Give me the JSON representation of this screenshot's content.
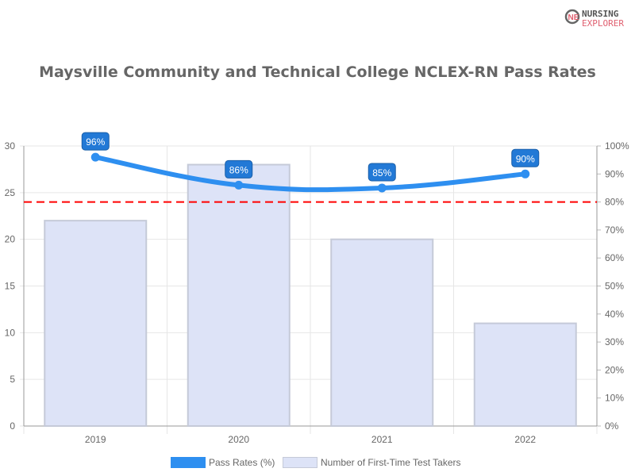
{
  "logo": {
    "line1": "NURSING",
    "line2": "EXPLORER"
  },
  "chart_data": {
    "type": "bar+line",
    "title": "Maysville Community and Technical College NCLEX-RN Pass Rates",
    "categories": [
      "2019",
      "2020",
      "2021",
      "2022"
    ],
    "series": [
      {
        "name": "Pass Rates (%)",
        "type": "line",
        "axis": "right",
        "values": [
          96,
          86,
          85,
          90
        ],
        "labels": [
          "96%",
          "86%",
          "85%",
          "90%"
        ],
        "color": "#2e8ff0"
      },
      {
        "name": "Number of First-Time Test Takers",
        "type": "bar",
        "axis": "left",
        "values": [
          22,
          28,
          20,
          11
        ],
        "color": "#dde3f7"
      }
    ],
    "left_axis": {
      "ylim": [
        0,
        30
      ],
      "ticks": [
        "0",
        "5",
        "10",
        "15",
        "20",
        "25",
        "30"
      ]
    },
    "right_axis": {
      "ylim": [
        0,
        100
      ],
      "ticks": [
        "0%",
        "10%",
        "20%",
        "30%",
        "40%",
        "50%",
        "60%",
        "70%",
        "80%",
        "90%",
        "100%"
      ]
    },
    "reference_line": {
      "value_percent": 80,
      "color": "#ff0000",
      "style": "dashed"
    },
    "grid": true,
    "legend": "bottom"
  }
}
